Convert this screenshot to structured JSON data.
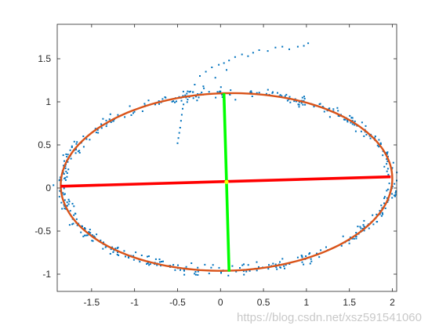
{
  "chart_data": {
    "type": "scatter",
    "xlim": [
      -1.9,
      2.05
    ],
    "ylim": [
      -1.2,
      1.9
    ],
    "x_ticks": [
      -1.5,
      -1,
      -0.5,
      0,
      0.5,
      1,
      1.5,
      2
    ],
    "x_tick_labels": [
      "-1.5",
      "-1",
      "-0.5",
      "0",
      "0.5",
      "1",
      "1.5",
      "2"
    ],
    "y_ticks": [
      -1,
      -0.5,
      0,
      0.5,
      1,
      1.5
    ],
    "y_tick_labels": [
      "-1",
      "-0.5",
      "0",
      "0.5",
      "1",
      "1.5"
    ],
    "grid": false,
    "colors": {
      "points": "#0072BD",
      "ellipse": "#D95319",
      "major_axis": "#FF0000",
      "minor_axis": "#00FF00",
      "center": "#FFFF00"
    },
    "ellipse": {
      "center": [
        0.07,
        0.07
      ],
      "semi_major": 1.93,
      "semi_minor": 1.03,
      "angle_deg": 1.5
    },
    "major_axis_line": {
      "x": [
        -1.86,
        1.98
      ],
      "y": [
        0.02,
        0.13
      ]
    },
    "minor_axis_line": {
      "x": [
        0.04,
        0.1
      ],
      "y": [
        1.1,
        -0.97
      ]
    },
    "center_point": {
      "x": 0.07,
      "y": 0.07
    },
    "outlier_points": [
      [
        -0.5,
        0.52
      ],
      [
        -0.49,
        0.58
      ],
      [
        -0.48,
        0.64
      ],
      [
        -0.47,
        0.7
      ],
      [
        -0.46,
        0.78
      ],
      [
        -0.45,
        0.85
      ],
      [
        -0.44,
        0.92
      ],
      [
        -0.43,
        0.97
      ],
      [
        -0.4,
        1.05
      ],
      [
        -0.35,
        1.12
      ],
      [
        -0.3,
        1.2
      ],
      [
        -0.24,
        1.3
      ],
      [
        -0.17,
        1.35
      ],
      [
        -0.1,
        1.4
      ],
      [
        -0.02,
        1.43
      ],
      [
        0.04,
        1.45
      ],
      [
        0.1,
        1.48
      ],
      [
        0.17,
        1.52
      ],
      [
        0.25,
        1.55
      ],
      [
        0.32,
        1.53
      ],
      [
        0.38,
        1.57
      ],
      [
        0.45,
        1.6
      ],
      [
        0.55,
        1.59
      ],
      [
        0.64,
        1.63
      ],
      [
        0.72,
        1.64
      ],
      [
        0.8,
        1.61
      ],
      [
        0.9,
        1.64
      ],
      [
        0.97,
        1.65
      ],
      [
        1.02,
        1.68
      ],
      [
        0.07,
        1.37
      ],
      [
        -0.06,
        1.28
      ],
      [
        -0.2,
        1.18
      ]
    ],
    "ring_point_count": 520
  },
  "watermark": "https://blog.csdn.net/xsz591541060"
}
